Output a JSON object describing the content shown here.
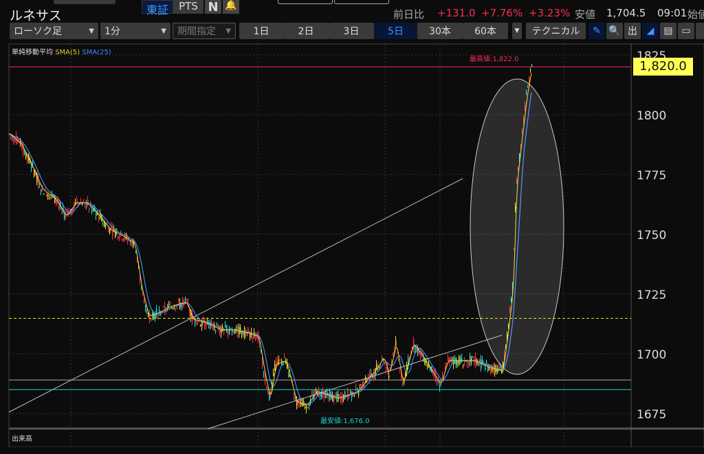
{
  "header": {
    "exchange_tse": "東証",
    "exchange_pts": "PTS",
    "news_icon": "N",
    "stock_name": "ルネサス",
    "change_label": "前日比",
    "change_value": "+131.0",
    "change_pct": "+7.76%",
    "change_pct2": "+3.23%",
    "low_label": "安値",
    "low_value": "1,704.5",
    "low_time": "09:01",
    "open_label": "始値"
  },
  "toolbar": {
    "chart_type": "ローソク足",
    "interval": "1分",
    "period": "期間指定",
    "ranges": [
      "1日",
      "2日",
      "3日",
      "5日",
      "30本",
      "60本"
    ],
    "active_range": "5日",
    "technical": "テクニカル",
    "icons": [
      "pencil-icon",
      "zoom-icon",
      "volume-icon",
      "area-chart-icon",
      "save-icon",
      "folder-icon"
    ]
  },
  "legend": {
    "title": "単純移動平均",
    "sma5": "SMA(5)",
    "sma25": "SMA(25)"
  },
  "annotations": {
    "high": "最高値:1,822.0",
    "low": "最安値:1,676.0",
    "current_price": "1,820.0"
  },
  "volume_pane": {
    "label": "出来高"
  },
  "colors": {
    "up": "#ff2a55",
    "down": "#20e0e0",
    "sma5": "#f0e020",
    "sma25": "#3a8cff",
    "price_line": "#ff2a55",
    "current_tag_bg": "#ffff55"
  },
  "chart_data": {
    "type": "candlestick",
    "ylim": [
      1670,
      1830
    ],
    "y_ticks": [
      1675,
      1700,
      1725,
      1750,
      1775,
      1800,
      1825
    ],
    "horizontal_lines": [
      1820,
      1714.8,
      1689,
      1685
    ],
    "series_approx": [
      [
        0,
        1792
      ],
      [
        17,
        1787.6
      ],
      [
        32,
        1779
      ],
      [
        47,
        1769
      ],
      [
        67,
        1764.7
      ],
      [
        82,
        1757.5
      ],
      [
        97,
        1763.2
      ],
      [
        112,
        1763.2
      ],
      [
        127,
        1758.9
      ],
      [
        147,
        1751.7
      ],
      [
        167,
        1748.9
      ],
      [
        182,
        1746
      ],
      [
        192,
        1727.3
      ],
      [
        202,
        1715.8
      ],
      [
        217,
        1717.2
      ],
      [
        237,
        1720.1
      ],
      [
        257,
        1721.6
      ],
      [
        267,
        1714.4
      ],
      [
        287,
        1712.9
      ],
      [
        307,
        1710
      ],
      [
        327,
        1710
      ],
      [
        347,
        1708.6
      ],
      [
        362,
        1707.2
      ],
      [
        372,
        1690
      ],
      [
        379,
        1681.3
      ],
      [
        387,
        1695.7
      ],
      [
        402,
        1697.1
      ],
      [
        417,
        1679.9
      ],
      [
        432,
        1678.4
      ],
      [
        447,
        1684.2
      ],
      [
        462,
        1682.8
      ],
      [
        477,
        1681.3
      ],
      [
        492,
        1682.8
      ],
      [
        507,
        1684.2
      ],
      [
        522,
        1690
      ],
      [
        532,
        1692.8
      ],
      [
        544,
        1698.6
      ],
      [
        552,
        1691.4
      ],
      [
        562,
        1704.3
      ],
      [
        572,
        1687.1
      ],
      [
        587,
        1704.3
      ],
      [
        602,
        1698.6
      ],
      [
        617,
        1691.4
      ],
      [
        627,
        1687.1
      ],
      [
        637,
        1697.1
      ],
      [
        657,
        1697.1
      ],
      [
        677,
        1697.1
      ],
      [
        697,
        1694.3
      ],
      [
        717,
        1692.8
      ],
      [
        725,
        1710
      ],
      [
        732,
        1727.3
      ],
      [
        737,
        1770.4
      ],
      [
        745,
        1790.5
      ],
      [
        752,
        1807.8
      ],
      [
        760,
        1820.7
      ]
    ]
  }
}
